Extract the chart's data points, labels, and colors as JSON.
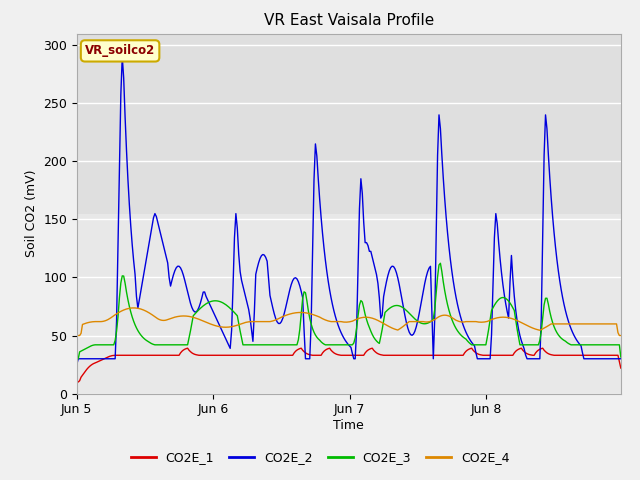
{
  "title": "VR East Vaisala Profile",
  "xlabel": "Time",
  "ylabel": "Soil CO2 (mV)",
  "ylim": [
    0,
    310
  ],
  "yticks": [
    0,
    50,
    100,
    150,
    200,
    250,
    300
  ],
  "subtitle_box": "VR_soilco2",
  "legend_labels": [
    "CO2E_1",
    "CO2E_2",
    "CO2E_3",
    "CO2E_4"
  ],
  "line_colors": [
    "#dd0000",
    "#0000dd",
    "#00bb00",
    "#dd8800"
  ],
  "background_color": "#e8e8e8",
  "fig_bg": "#f0f0f0",
  "xtick_labels": [
    "Jun 5",
    "Jun 6",
    "Jun 7",
    "Jun 8"
  ],
  "n_points": 384,
  "xlim_end": 383
}
